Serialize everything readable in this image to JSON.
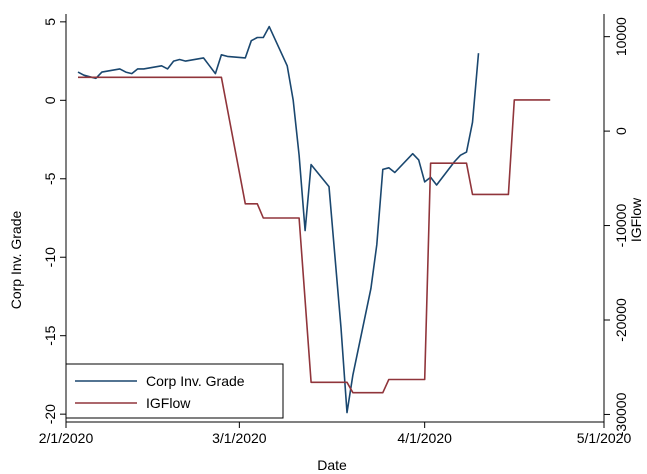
{
  "chart_data": {
    "type": "line",
    "xlabel": "Date",
    "ylabel_left": "Corp Inv. Grade",
    "ylabel_right": "IGFlow",
    "x_ticks": [
      "2/1/2020",
      "3/1/2020",
      "4/1/2020",
      "5/1/2020"
    ],
    "y_left_ticks": [
      5,
      0,
      -5,
      -10,
      -15,
      -20
    ],
    "y_right_ticks": [
      10000,
      0,
      -10000,
      -20000,
      -30000
    ],
    "xlim": [
      "2020-02-01",
      "2020-05-01"
    ],
    "ylim_left": [
      -20.5,
      5.5
    ],
    "ylim_right": [
      -30800,
      12400
    ],
    "grid": false,
    "legend_position": "bottom-left",
    "series": [
      {
        "name": "Corp Inv. Grade",
        "axis": "left",
        "color": "#1a476f",
        "points": [
          [
            "2020-02-03",
            1.8
          ],
          [
            "2020-02-04",
            1.6
          ],
          [
            "2020-02-05",
            1.5
          ],
          [
            "2020-02-06",
            1.4
          ],
          [
            "2020-02-07",
            1.8
          ],
          [
            "2020-02-10",
            2.0
          ],
          [
            "2020-02-11",
            1.8
          ],
          [
            "2020-02-12",
            1.7
          ],
          [
            "2020-02-13",
            2.0
          ],
          [
            "2020-02-14",
            2.0
          ],
          [
            "2020-02-17",
            2.2
          ],
          [
            "2020-02-18",
            2.0
          ],
          [
            "2020-02-19",
            2.5
          ],
          [
            "2020-02-20",
            2.6
          ],
          [
            "2020-02-21",
            2.5
          ],
          [
            "2020-02-24",
            2.7
          ],
          [
            "2020-02-25",
            2.2
          ],
          [
            "2020-02-26",
            1.7
          ],
          [
            "2020-02-27",
            2.9
          ],
          [
            "2020-02-28",
            2.8
          ],
          [
            "2020-03-02",
            2.7
          ],
          [
            "2020-03-03",
            3.8
          ],
          [
            "2020-03-04",
            4.0
          ],
          [
            "2020-03-05",
            4.0
          ],
          [
            "2020-03-06",
            4.7
          ],
          [
            "2020-03-09",
            2.2
          ],
          [
            "2020-03-10",
            0.0
          ],
          [
            "2020-03-11",
            -3.5
          ],
          [
            "2020-03-12",
            -8.3
          ],
          [
            "2020-03-13",
            -4.1
          ],
          [
            "2020-03-16",
            -5.5
          ],
          [
            "2020-03-17",
            -10.0
          ],
          [
            "2020-03-18",
            -14.5
          ],
          [
            "2020-03-19",
            -19.9
          ],
          [
            "2020-03-20",
            -17.5
          ],
          [
            "2020-03-23",
            -12.0
          ],
          [
            "2020-03-24",
            -9.2
          ],
          [
            "2020-03-25",
            -4.4
          ],
          [
            "2020-03-26",
            -4.3
          ],
          [
            "2020-03-27",
            -4.6
          ],
          [
            "2020-03-30",
            -3.4
          ],
          [
            "2020-03-31",
            -3.8
          ],
          [
            "2020-04-01",
            -5.2
          ],
          [
            "2020-04-02",
            -4.9
          ],
          [
            "2020-04-03",
            -5.4
          ],
          [
            "2020-04-06",
            -3.9
          ],
          [
            "2020-04-07",
            -3.5
          ],
          [
            "2020-04-08",
            -3.3
          ],
          [
            "2020-04-09",
            -1.4
          ],
          [
            "2020-04-10",
            3.0
          ]
        ]
      },
      {
        "name": "IGFlow",
        "axis": "right",
        "color": "#90353b",
        "points": [
          [
            "2020-02-03",
            5700
          ],
          [
            "2020-02-27",
            5700
          ],
          [
            "2020-03-02",
            -7700
          ],
          [
            "2020-03-04",
            -7700
          ],
          [
            "2020-03-05",
            -9200
          ],
          [
            "2020-03-11",
            -9200
          ],
          [
            "2020-03-13",
            -26600
          ],
          [
            "2020-03-19",
            -26600
          ],
          [
            "2020-03-20",
            -27700
          ],
          [
            "2020-03-25",
            -27700
          ],
          [
            "2020-03-26",
            -26300
          ],
          [
            "2020-04-01",
            -26300
          ],
          [
            "2020-04-02",
            -3400
          ],
          [
            "2020-04-08",
            -3400
          ],
          [
            "2020-04-09",
            -6700
          ],
          [
            "2020-04-15",
            -6700
          ],
          [
            "2020-04-16",
            3300
          ],
          [
            "2020-04-22",
            3300
          ]
        ]
      }
    ]
  }
}
